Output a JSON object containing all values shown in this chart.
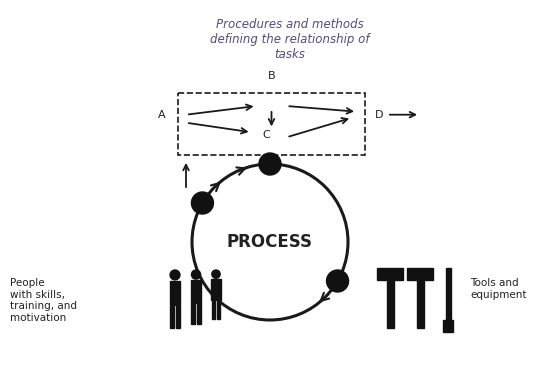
{
  "title_text": "Procedures and methods\ndefining the relationship of\ntasks",
  "title_color": "#5a4a7a",
  "process_label": "PROCESS",
  "people_label": "People\nwith skills,\ntraining, and\nmotivation",
  "tools_label": "Tools and\nequipment",
  "label_A": "A",
  "label_B": "B",
  "label_C": "C",
  "label_D": "D",
  "bg_color": "#ffffff",
  "arrow_color": "#1a1a1a",
  "node_color": "#111111",
  "text_color": "#222222",
  "title_fontsize": 8.5,
  "process_fontsize": 12,
  "label_fontsize": 8
}
